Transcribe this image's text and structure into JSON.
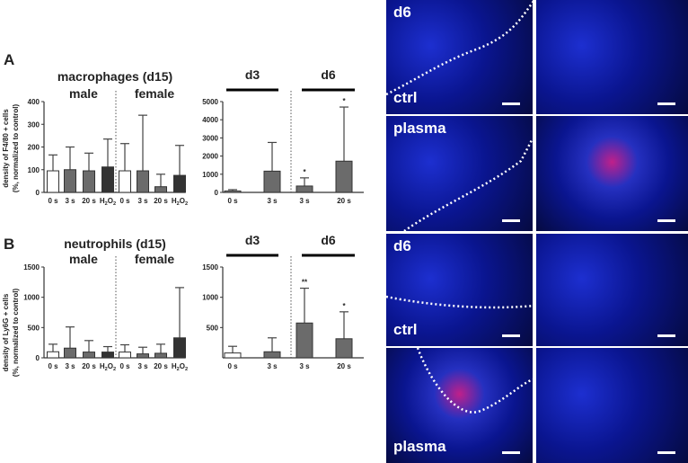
{
  "panels": [
    {
      "letter": "A",
      "title": "macrophages (d15)",
      "ylabel_line1": "density of F4/80 + cells",
      "ylabel_line2": "(%, normalized to control)"
    },
    {
      "letter": "B",
      "title": "neutrophils (d15)",
      "ylabel_line1": "density of Ly6G + cells",
      "ylabel_line2": "(%, normalized to control)"
    }
  ],
  "chart_data": [
    {
      "type": "bar",
      "panel": "A",
      "groups": [
        "male",
        "female"
      ],
      "categories": [
        "0 s",
        "3 s",
        "20 s",
        "H2O2",
        "0 s",
        "3 s",
        "20 s",
        "H2O2"
      ],
      "values": [
        95,
        100,
        95,
        112,
        95,
        95,
        25,
        75
      ],
      "errors_upper": [
        165,
        200,
        173,
        235,
        215,
        340,
        80,
        207
      ],
      "colors": [
        "#ffffff",
        "#6b6b6b",
        "#6b6b6b",
        "#333333",
        "#ffffff",
        "#6b6b6b",
        "#6b6b6b",
        "#333333"
      ],
      "ylim": [
        0,
        400
      ],
      "yticks": [
        0,
        100,
        200,
        300,
        400
      ]
    },
    {
      "type": "bar",
      "panel": "A",
      "groups": [
        "d3",
        "d6"
      ],
      "categories": [
        "0 s",
        "3 s",
        "3 s",
        "20 s"
      ],
      "values": [
        80,
        1170,
        350,
        1720
      ],
      "errors_upper": [
        150,
        2750,
        800,
        4700
      ],
      "annotations": [
        "",
        "",
        "*",
        "*"
      ],
      "colors": [
        "#9a9a9a",
        "#6b6b6b",
        "#6b6b6b",
        "#6b6b6b"
      ],
      "ylim": [
        0,
        5000
      ],
      "yticks": [
        0,
        1000,
        2000,
        3000,
        4000,
        5000
      ]
    },
    {
      "type": "bar",
      "panel": "B",
      "groups": [
        "male",
        "female"
      ],
      "categories": [
        "0 s",
        "3 s",
        "20 s",
        "H2O2",
        "0 s",
        "3 s",
        "20 s",
        "H2O2"
      ],
      "values": [
        100,
        160,
        95,
        95,
        95,
        65,
        75,
        330
      ],
      "errors_upper": [
        225,
        510,
        285,
        185,
        215,
        175,
        225,
        1160
      ],
      "colors": [
        "#ffffff",
        "#6b6b6b",
        "#6b6b6b",
        "#333333",
        "#ffffff",
        "#6b6b6b",
        "#6b6b6b",
        "#333333"
      ],
      "ylim": [
        0,
        1500
      ],
      "yticks": [
        0,
        500,
        1000,
        1500
      ]
    },
    {
      "type": "bar",
      "panel": "B",
      "groups": [
        "d3",
        "d6"
      ],
      "categories": [
        "0 s",
        "3 s",
        "3 s",
        "20 s"
      ],
      "values": [
        80,
        100,
        575,
        315
      ],
      "errors_upper": [
        190,
        330,
        1150,
        760
      ],
      "annotations": [
        "",
        "",
        "**",
        "*"
      ],
      "colors": [
        "#ffffff",
        "#6b6b6b",
        "#6b6b6b",
        "#6b6b6b"
      ],
      "ylim": [
        0,
        1500
      ],
      "yticks": [
        500,
        1000,
        1500
      ]
    }
  ],
  "images": [
    {
      "label_top": "d6",
      "label_bottom": "ctrl"
    },
    {
      "label_top": "",
      "label_bottom": ""
    },
    {
      "label_top": "plasma",
      "label_bottom": ""
    },
    {
      "label_top": "",
      "label_bottom": ""
    },
    {
      "label_top": "d6",
      "label_bottom": "ctrl"
    },
    {
      "label_top": "",
      "label_bottom": ""
    },
    {
      "label_top": "",
      "label_bottom": "plasma"
    },
    {
      "label_top": "",
      "label_bottom": ""
    }
  ]
}
